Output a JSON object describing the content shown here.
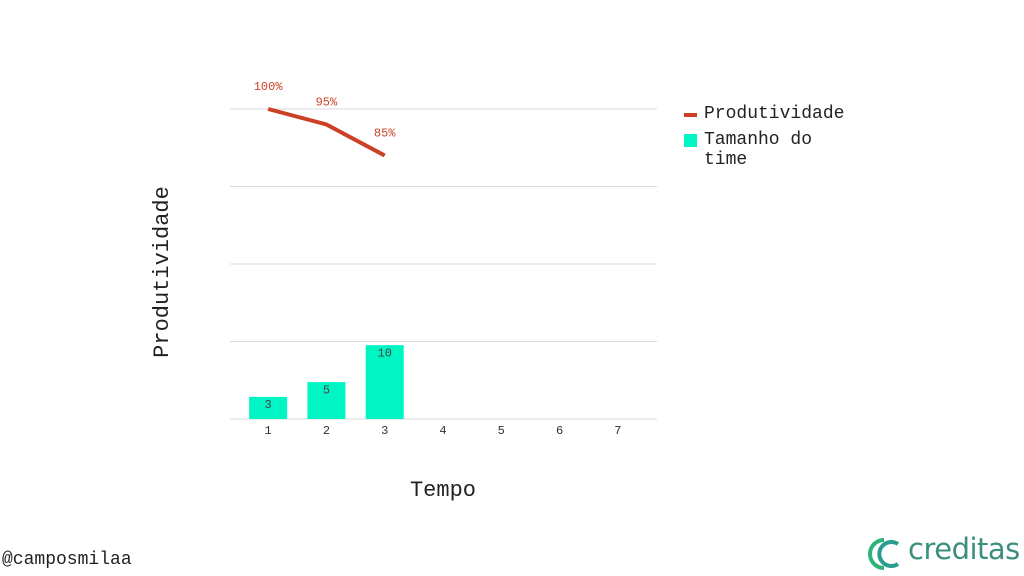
{
  "footer": {
    "handle": "@camposmilaa",
    "brand": "creditas"
  },
  "chart_data": {
    "type": "combo",
    "x_label": "Tempo",
    "y_label": "Produtividade",
    "categories": [
      "1",
      "2",
      "3",
      "4",
      "5",
      "6",
      "7"
    ],
    "series": [
      {
        "name": "Produtividade",
        "type": "line",
        "color": "#cc4125",
        "values": [
          100,
          95,
          85,
          null,
          null,
          null,
          null
        ],
        "value_labels": [
          "100%",
          "95%",
          "85%",
          null,
          null,
          null,
          null
        ]
      },
      {
        "name": "Tamanho do time",
        "type": "bar",
        "axis": "y2",
        "color": "#00f5c4",
        "values": [
          3,
          5,
          10,
          null,
          null,
          null,
          null
        ]
      }
    ],
    "ylim": [
      0,
      100
    ],
    "yticks": [
      0,
      25,
      50,
      75,
      100
    ],
    "y2lim": [
      0,
      42
    ],
    "grid": true,
    "legend": "right"
  }
}
